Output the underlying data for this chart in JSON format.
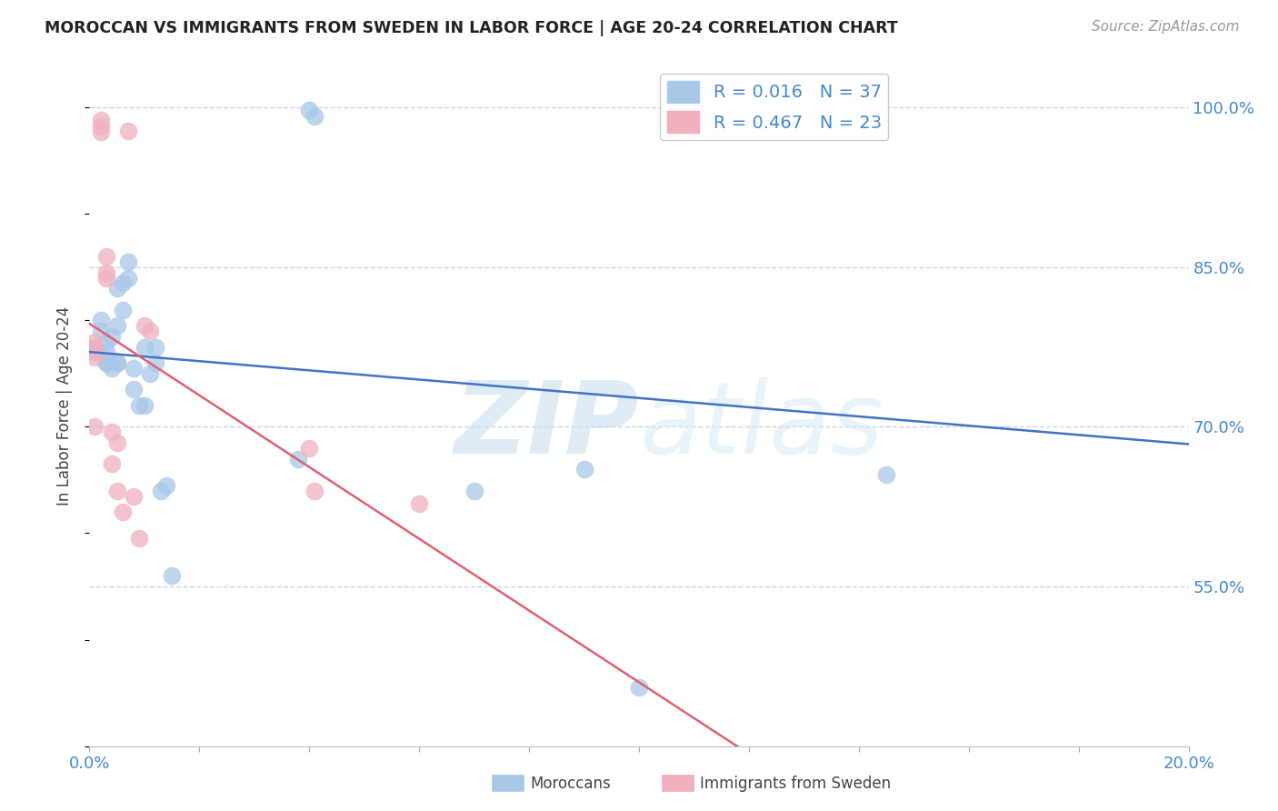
{
  "title": "MOROCCAN VS IMMIGRANTS FROM SWEDEN IN LABOR FORCE | AGE 20-24 CORRELATION CHART",
  "source": "Source: ZipAtlas.com",
  "ylabel": "In Labor Force | Age 20-24",
  "xlim": [
    0.0,
    0.2
  ],
  "ylim": [
    0.4,
    1.04
  ],
  "xticks": [
    0.0,
    0.02,
    0.04,
    0.06,
    0.08,
    0.1,
    0.12,
    0.14,
    0.16,
    0.18,
    0.2
  ],
  "yticks_right": [
    0.55,
    0.7,
    0.85,
    1.0
  ],
  "ytick_labels_right": [
    "55.0%",
    "70.0%",
    "85.0%",
    "100.0%"
  ],
  "blue_color": "#a8c8e8",
  "pink_color": "#f0b0be",
  "blue_line_color": "#4472c4",
  "pink_line_color": "#e06070",
  "watermark_zip": "ZIP",
  "watermark_atlas": "atlas",
  "legend_blue_r": "R = 0.016",
  "legend_blue_n": "N = 37",
  "legend_pink_r": "R = 0.467",
  "legend_pink_n": "N = 23",
  "blue_x": [
    0.001,
    0.001,
    0.002,
    0.002,
    0.003,
    0.003,
    0.003,
    0.004,
    0.004,
    0.005,
    0.005,
    0.005,
    0.006,
    0.006,
    0.007,
    0.007,
    0.008,
    0.008,
    0.009,
    0.01,
    0.01,
    0.011,
    0.012,
    0.012,
    0.013,
    0.014,
    0.015,
    0.038,
    0.04,
    0.041,
    0.07,
    0.1,
    0.145,
    0.09,
    0.003,
    0.005,
    0.13
  ],
  "blue_y": [
    0.775,
    0.77,
    0.8,
    0.79,
    0.78,
    0.77,
    0.76,
    0.785,
    0.755,
    0.795,
    0.83,
    0.76,
    0.835,
    0.81,
    0.855,
    0.84,
    0.755,
    0.735,
    0.72,
    0.72,
    0.775,
    0.75,
    0.775,
    0.76,
    0.64,
    0.645,
    0.56,
    0.67,
    0.998,
    0.992,
    0.64,
    0.455,
    0.655,
    0.66,
    0.76,
    0.76,
    1.0
  ],
  "pink_x": [
    0.001,
    0.001,
    0.001,
    0.001,
    0.002,
    0.002,
    0.002,
    0.003,
    0.003,
    0.003,
    0.004,
    0.004,
    0.005,
    0.005,
    0.006,
    0.007,
    0.008,
    0.009,
    0.01,
    0.011,
    0.04,
    0.041,
    0.06
  ],
  "pink_y": [
    0.78,
    0.775,
    0.765,
    0.7,
    0.988,
    0.982,
    0.977,
    0.86,
    0.845,
    0.84,
    0.695,
    0.665,
    0.685,
    0.64,
    0.62,
    0.978,
    0.635,
    0.595,
    0.795,
    0.79,
    0.68,
    0.64,
    0.628
  ],
  "background_color": "#ffffff",
  "grid_color": "#c8d8e8",
  "axis_color": "#4488cc"
}
